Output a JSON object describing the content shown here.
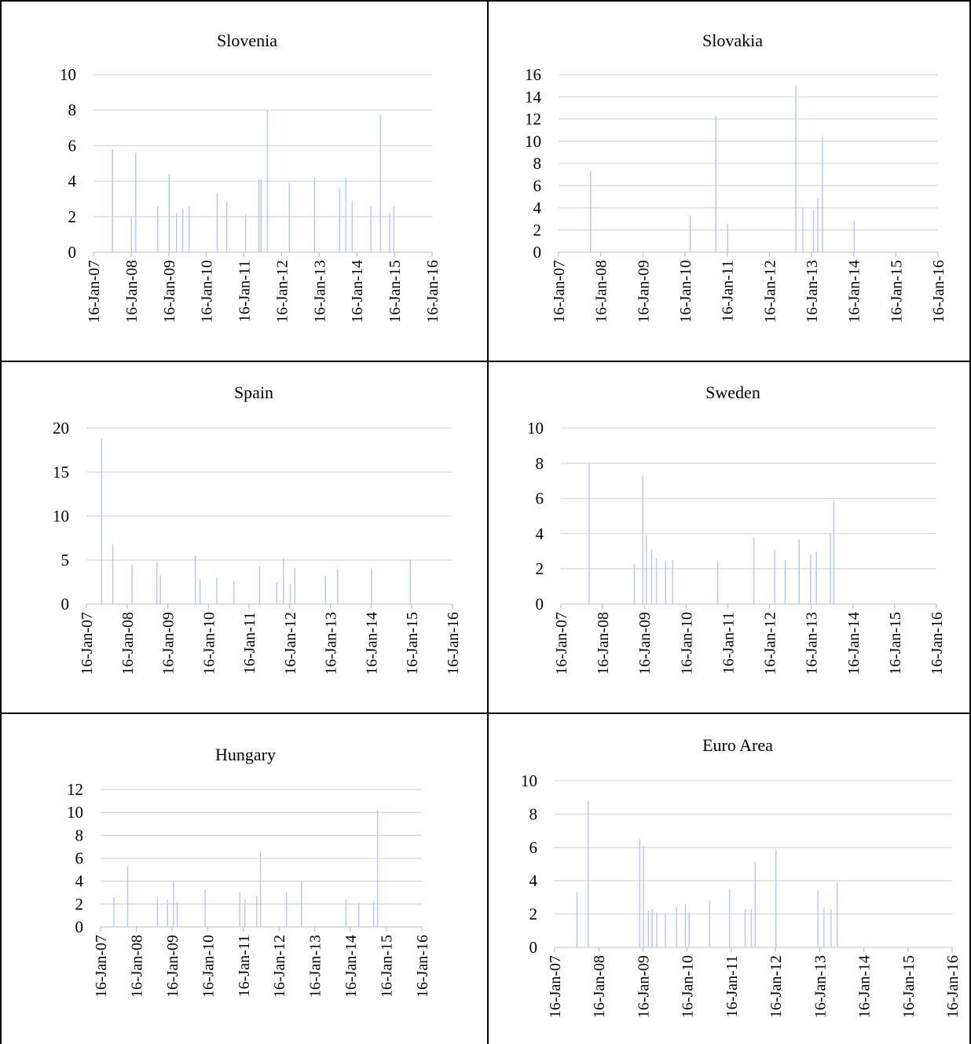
{
  "chart_data": [
    {
      "type": "bar",
      "title": "Slovenia",
      "xlabel": "",
      "ylabel": "",
      "x_ticks": [
        "16-Jan-07",
        "16-Jan-08",
        "16-Jan-09",
        "16-Jan-10",
        "16-Jan-11",
        "16-Jan-12",
        "16-Jan-13",
        "16-Jan-14",
        "16-Jan-15",
        "16-Jan-16"
      ],
      "y_ticks": [
        "0",
        "2",
        "4",
        "6",
        "8",
        "10"
      ],
      "ylim": [
        0,
        10
      ],
      "grid": true,
      "series_color": "#b4c7e7",
      "x": [
        "2007-07-20",
        "2008-01-20",
        "2008-03-01",
        "2008-10-01",
        "2009-01-20",
        "2009-04-01",
        "2009-06-01",
        "2009-08-01",
        "2010-05-01",
        "2010-08-01",
        "2011-02-01",
        "2011-06-10",
        "2011-07-01",
        "2011-09-01",
        "2012-04-01",
        "2012-12-01",
        "2013-08-01",
        "2013-10-01",
        "2013-12-01",
        "2014-06-01",
        "2014-09-01",
        "2014-12-01",
        "2015-01-10"
      ],
      "values": [
        5.8,
        2.0,
        5.6,
        2.6,
        4.4,
        2.2,
        2.4,
        2.6,
        3.3,
        2.8,
        2.1,
        4.1,
        4.1,
        8.0,
        3.9,
        4.2,
        3.6,
        4.2,
        2.9,
        2.6,
        7.7,
        2.2,
        2.6
      ]
    },
    {
      "type": "bar",
      "title": "Slovakia",
      "xlabel": "",
      "ylabel": "",
      "x_ticks": [
        "16-Jan-07",
        "16-Jan-08",
        "16-Jan-09",
        "16-Jan-10",
        "16-Jan-11",
        "16-Jan-12",
        "16-Jan-13",
        "16-Jan-14",
        "16-Jan-15",
        "16-Jan-16"
      ],
      "y_ticks": [
        "0",
        "2",
        "4",
        "6",
        "8",
        "10",
        "12",
        "14",
        "16"
      ],
      "ylim": [
        0,
        16
      ],
      "grid": true,
      "series_color": "#b4c7e7",
      "x": [
        "2007-10-20",
        "2010-03-01",
        "2010-10-10",
        "2011-01-20",
        "2012-09-01",
        "2012-11-01",
        "2013-02-01",
        "2013-03-10",
        "2013-04-20",
        "2014-01-20"
      ],
      "values": [
        7.3,
        3.3,
        12.3,
        2.5,
        15.0,
        4.0,
        3.7,
        4.9,
        10.5,
        2.8
      ]
    },
    {
      "type": "bar",
      "title": "Spain",
      "xlabel": "",
      "ylabel": "",
      "x_ticks": [
        "16-Jan-07",
        "16-Jan-08",
        "16-Jan-09",
        "16-Jan-10",
        "16-Jan-11",
        "16-Jan-12",
        "16-Jan-13",
        "16-Jan-14",
        "16-Jan-15",
        "16-Jan-16"
      ],
      "y_ticks": [
        "0",
        "5",
        "10",
        "15",
        "20"
      ],
      "ylim": [
        0,
        20
      ],
      "grid": true,
      "series_color": "#b4c7e7",
      "x": [
        "2007-06-01",
        "2007-09-10",
        "2008-03-01",
        "2008-10-10",
        "2008-11-10",
        "2009-09-20",
        "2009-11-01",
        "2010-04-01",
        "2010-09-01",
        "2011-04-20",
        "2011-09-20",
        "2011-11-20",
        "2012-01-20",
        "2012-03-01",
        "2012-12-01",
        "2013-03-20",
        "2014-01-20",
        "2015-01-01"
      ],
      "values": [
        18.8,
        6.8,
        4.5,
        4.8,
        3.3,
        5.5,
        2.8,
        3.0,
        2.6,
        4.3,
        2.5,
        5.2,
        2.3,
        4.1,
        3.2,
        3.9,
        4.0,
        5.1
      ]
    },
    {
      "type": "bar",
      "title": "Sweden",
      "xlabel": "",
      "ylabel": "",
      "x_ticks": [
        "16-Jan-07",
        "16-Jan-08",
        "16-Jan-09",
        "16-Jan-10",
        "16-Jan-11",
        "16-Jan-12",
        "16-Jan-13",
        "16-Jan-14",
        "16-Jan-15",
        "16-Jan-16"
      ],
      "y_ticks": [
        "0",
        "2",
        "4",
        "6",
        "8",
        "10"
      ],
      "ylim": [
        0,
        10
      ],
      "grid": true,
      "series_color": "#b4c7e7",
      "x": [
        "2007-09-20",
        "2008-10-20",
        "2009-01-01",
        "2009-02-01",
        "2009-03-20",
        "2009-05-01",
        "2009-07-20",
        "2009-09-20",
        "2010-10-20",
        "2011-09-01",
        "2012-03-01",
        "2012-06-01",
        "2012-10-01",
        "2013-01-10",
        "2013-03-01",
        "2013-07-01",
        "2013-08-01"
      ],
      "values": [
        8.0,
        2.3,
        7.3,
        3.9,
        3.1,
        2.6,
        2.4,
        2.5,
        2.4,
        3.8,
        3.1,
        2.5,
        3.7,
        2.8,
        3.0,
        4.0,
        5.9
      ]
    },
    {
      "type": "bar",
      "title": "Hungary",
      "xlabel": "",
      "ylabel": "",
      "x_ticks": [
        "16-Jan-07",
        "16-Jan-08",
        "16-Jan-09",
        "16-Jan-10",
        "16-Jan-11",
        "16-Jan-12",
        "16-Jan-13",
        "16-Jan-14",
        "16-Jan-15",
        "16-Jan-16"
      ],
      "y_ticks": [
        "0",
        "2",
        "4",
        "6",
        "8",
        "10",
        "12"
      ],
      "ylim": [
        0,
        12
      ],
      "grid": true,
      "series_color": "#b4c7e7",
      "x": [
        "2007-06-01",
        "2007-10-20",
        "2008-08-20",
        "2008-12-01",
        "2009-02-01",
        "2009-03-10",
        "2009-12-20",
        "2010-12-10",
        "2011-02-01",
        "2011-06-01",
        "2011-07-10",
        "2012-04-01",
        "2012-09-01",
        "2013-12-01",
        "2014-04-10",
        "2014-09-10",
        "2014-10-20"
      ],
      "values": [
        2.6,
        5.3,
        2.6,
        2.4,
        4.0,
        2.2,
        3.3,
        3.0,
        2.4,
        2.7,
        6.6,
        3.0,
        4.0,
        2.4,
        2.1,
        2.2,
        10.2
      ]
    },
    {
      "type": "bar",
      "title": "Euro Area",
      "xlabel": "",
      "ylabel": "",
      "x_ticks": [
        "16-Jan-07",
        "16-Jan-08",
        "16-Jan-09",
        "16-Jan-10",
        "16-Jan-11",
        "16-Jan-12",
        "16-Jan-13",
        "16-Jan-14",
        "16-Jan-15",
        "16-Jan-16"
      ],
      "y_ticks": [
        "0",
        "2",
        "4",
        "6",
        "8",
        "10"
      ],
      "ylim": [
        0,
        10
      ],
      "grid": true,
      "series_color": "#b4c7e7",
      "x": [
        "2007-07-20",
        "2007-10-20",
        "2008-12-20",
        "2009-01-20",
        "2009-03-01",
        "2009-04-01",
        "2009-05-10",
        "2009-07-20",
        "2009-10-20",
        "2010-01-01",
        "2010-02-01",
        "2010-07-20",
        "2011-01-01",
        "2011-05-10",
        "2011-07-01",
        "2011-08-01",
        "2011-09-01",
        "2012-01-20",
        "2013-01-01",
        "2013-02-20",
        "2013-04-20",
        "2013-06-10"
      ],
      "values": [
        3.3,
        8.8,
        6.5,
        6.1,
        2.2,
        2.3,
        2.1,
        2.0,
        2.4,
        2.6,
        2.1,
        2.8,
        3.5,
        2.3,
        2.3,
        5.1,
        0,
        5.9,
        3.4,
        2.4,
        2.3,
        3.9
      ]
    }
  ]
}
